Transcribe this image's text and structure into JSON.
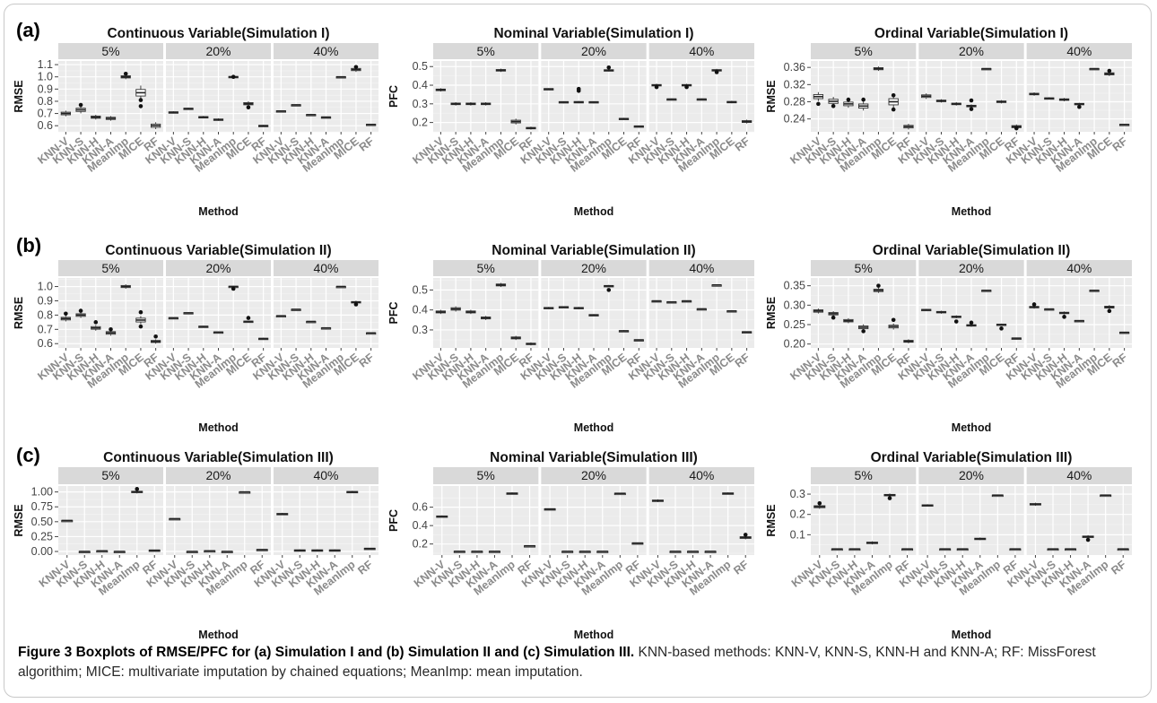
{
  "figure": {
    "caption_lead": "Figure 3 Boxplots of RMSE/PFC for (a) Simulation I and (b) Simulation II and (c) Simulation III.",
    "caption_body": " KNN-based methods: KNN-V, KNN-S, KNN-H and KNN-A; RF: MissForest algorithim; MICE: multivariate imputation by chained equations; MeanImp: mean imputation.",
    "row_labels": [
      "(a)",
      "(b)",
      "(c)"
    ]
  },
  "chart_data": [
    {
      "type": "boxplot",
      "row": 0,
      "col": 0,
      "title": "Continuous Variable(Simulation I)",
      "xlabel": "Method",
      "ylabel": "RMSE",
      "yticks": [
        "0.6",
        "0.7",
        "0.8",
        "0.9",
        "1.0",
        "1.1"
      ],
      "ylim": [
        0.55,
        1.13
      ],
      "facets": [
        "5%",
        "20%",
        "40%"
      ],
      "categories": [
        "KNN-V",
        "KNN-S",
        "KNN-H",
        "KNN-A",
        "MeanImp",
        "MICE",
        "RF"
      ],
      "median": [
        [
          0.7,
          0.73,
          0.67,
          0.66,
          1.0,
          0.87,
          0.6
        ],
        [
          0.71,
          0.74,
          0.67,
          0.65,
          1.0,
          0.78,
          0.6
        ],
        [
          0.72,
          0.77,
          0.69,
          0.67,
          1.0,
          1.06,
          0.61
        ]
      ],
      "spread": [
        [
          0.018,
          0.022,
          0.015,
          0.015,
          0.015,
          0.045,
          0.022
        ],
        [
          0.006,
          0.006,
          0.008,
          0.008,
          0.006,
          0.015,
          0.005
        ],
        [
          0.004,
          0.004,
          0.004,
          0.004,
          0.003,
          0.015,
          0.004
        ]
      ],
      "outliers": [
        [
          [
            1,
            0.77
          ],
          [
            4,
            1.025
          ],
          [
            5,
            0.81
          ],
          [
            5,
            0.76
          ]
        ],
        [
          [
            4,
            1.0
          ],
          [
            5,
            0.75
          ]
        ],
        [
          [
            5,
            1.08
          ]
        ]
      ]
    },
    {
      "type": "boxplot",
      "row": 0,
      "col": 1,
      "title": "Nominal Variable(Simulation I)",
      "xlabel": "Method",
      "ylabel": "PFC",
      "yticks": [
        "0.2",
        "0.3",
        "0.4",
        "0.5"
      ],
      "ylim": [
        0.15,
        0.53
      ],
      "facets": [
        "5%",
        "20%",
        "40%"
      ],
      "categories": [
        "KNN-V",
        "KNN-S",
        "KNN-H",
        "KNN-A",
        "MeanImp",
        "MICE",
        "RF"
      ],
      "median": [
        [
          0.375,
          0.3,
          0.3,
          0.3,
          0.48,
          0.205,
          0.17
        ],
        [
          0.38,
          0.31,
          0.31,
          0.31,
          0.48,
          0.22,
          0.18
        ],
        [
          0.4,
          0.325,
          0.4,
          0.325,
          0.48,
          0.31,
          0.205
        ]
      ],
      "spread": [
        [
          0.007,
          0.007,
          0.007,
          0.007,
          0.007,
          0.012,
          0.006
        ],
        [
          0.003,
          0.003,
          0.004,
          0.003,
          0.005,
          0.004,
          0.003
        ],
        [
          0.006,
          0.003,
          0.006,
          0.003,
          0.006,
          0.005,
          0.008
        ]
      ],
      "outliers": [
        [],
        [
          [
            2,
            0.38
          ],
          [
            2,
            0.37
          ],
          [
            4,
            0.495
          ]
        ],
        [
          [
            0,
            0.39
          ],
          [
            2,
            0.39
          ],
          [
            4,
            0.47
          ]
        ]
      ]
    },
    {
      "type": "boxplot",
      "row": 0,
      "col": 2,
      "title": "Ordinal Variable(Simulation I)",
      "xlabel": "Method",
      "ylabel": "RMSE",
      "yticks": [
        "0.24",
        "0.28",
        "0.32",
        "0.36"
      ],
      "ylim": [
        0.21,
        0.375
      ],
      "facets": [
        "5%",
        "20%",
        "40%"
      ],
      "categories": [
        "KNN-V",
        "KNN-S",
        "KNN-H",
        "KNN-A",
        "MeanImp",
        "MICE",
        "RF"
      ],
      "median": [
        [
          0.292,
          0.281,
          0.275,
          0.27,
          0.357,
          0.28,
          0.222
        ],
        [
          0.293,
          0.282,
          0.275,
          0.27,
          0.357,
          0.28,
          0.222
        ],
        [
          0.298,
          0.288,
          0.285,
          0.275,
          0.357,
          0.345,
          0.227
        ]
      ],
      "spread": [
        [
          0.008,
          0.008,
          0.007,
          0.008,
          0.004,
          0.012,
          0.005
        ],
        [
          0.005,
          0.003,
          0.003,
          0.003,
          0.001,
          0.003,
          0.004
        ],
        [
          0.003,
          0.002,
          0.003,
          0.002,
          0.001,
          0.004,
          0.001
        ]
      ],
      "outliers": [
        [
          [
            0,
            0.275
          ],
          [
            1,
            0.27
          ],
          [
            2,
            0.285
          ],
          [
            3,
            0.285
          ],
          [
            5,
            0.295
          ],
          [
            5,
            0.262
          ]
        ],
        [
          [
            3,
            0.263
          ],
          [
            3,
            0.283
          ],
          [
            6,
            0.218
          ]
        ],
        [
          [
            3,
            0.268
          ],
          [
            5,
            0.352
          ]
        ]
      ]
    },
    {
      "type": "boxplot",
      "row": 1,
      "col": 0,
      "title": "Continuous Variable(Simulation II)",
      "xlabel": "Method",
      "ylabel": "RMSE",
      "yticks": [
        "0.6",
        "0.7",
        "0.8",
        "0.9",
        "1.0"
      ],
      "ylim": [
        0.57,
        1.06
      ],
      "facets": [
        "5%",
        "20%",
        "40%"
      ],
      "categories": [
        "KNN-V",
        "KNN-S",
        "KNN-H",
        "KNN-A",
        "MeanImp",
        "MICE",
        "RF"
      ],
      "median": [
        [
          0.775,
          0.8,
          0.71,
          0.675,
          1.0,
          0.765,
          0.615
        ],
        [
          0.78,
          0.815,
          0.72,
          0.68,
          1.0,
          0.755,
          0.635
        ],
        [
          0.795,
          0.84,
          0.755,
          0.71,
          1.0,
          0.89,
          0.675
        ]
      ],
      "spread": [
        [
          0.015,
          0.015,
          0.015,
          0.015,
          0.012,
          0.022,
          0.012
        ],
        [
          0.004,
          0.004,
          0.004,
          0.004,
          0.004,
          0.005,
          0.005
        ],
        [
          0.002,
          0.002,
          0.002,
          0.002,
          0.002,
          0.008,
          0.002
        ]
      ],
      "outliers": [
        [
          [
            0,
            0.81
          ],
          [
            1,
            0.83
          ],
          [
            2,
            0.75
          ],
          [
            3,
            0.7
          ],
          [
            5,
            0.82
          ],
          [
            5,
            0.72
          ],
          [
            6,
            0.65
          ]
        ],
        [
          [
            4,
            0.985
          ],
          [
            5,
            0.78
          ]
        ],
        [
          [
            5,
            0.875
          ]
        ]
      ]
    },
    {
      "type": "boxplot",
      "row": 1,
      "col": 1,
      "title": "Nominal Variable(Simulation II)",
      "xlabel": "Method",
      "ylabel": "PFC",
      "yticks": [
        "0.3",
        "0.4",
        "0.5"
      ],
      "ylim": [
        0.21,
        0.56
      ],
      "facets": [
        "5%",
        "20%",
        "40%"
      ],
      "categories": [
        "KNN-V",
        "KNN-S",
        "KNN-H",
        "KNN-A",
        "MeanImp",
        "MICE",
        "RF"
      ],
      "median": [
        [
          0.39,
          0.405,
          0.39,
          0.36,
          0.525,
          0.26,
          0.23
        ],
        [
          0.41,
          0.415,
          0.41,
          0.375,
          0.52,
          0.295,
          0.25
        ],
        [
          0.445,
          0.44,
          0.445,
          0.405,
          0.525,
          0.395,
          0.29
        ]
      ],
      "spread": [
        [
          0.008,
          0.01,
          0.008,
          0.008,
          0.008,
          0.008,
          0.006
        ],
        [
          0.004,
          0.003,
          0.004,
          0.003,
          0.004,
          0.003,
          0.002
        ],
        [
          0.002,
          0.002,
          0.002,
          0.002,
          0.001,
          0.002,
          0.002
        ]
      ],
      "outliers": [
        [],
        [
          [
            4,
            0.5
          ]
        ],
        []
      ]
    },
    {
      "type": "boxplot",
      "row": 1,
      "col": 2,
      "title": "Ordinal Variable(Simulation II)",
      "xlabel": "Method",
      "ylabel": "RMSE",
      "yticks": [
        "0.20",
        "0.25",
        "0.30",
        "0.35"
      ],
      "ylim": [
        0.19,
        0.37
      ],
      "facets": [
        "5%",
        "20%",
        "40%"
      ],
      "categories": [
        "KNN-V",
        "KNN-S",
        "KNN-H",
        "KNN-A",
        "MeanImp",
        "MICE",
        "RF"
      ],
      "median": [
        [
          0.285,
          0.278,
          0.26,
          0.243,
          0.338,
          0.245,
          0.207
        ],
        [
          0.288,
          0.282,
          0.27,
          0.248,
          0.338,
          0.25,
          0.215
        ],
        [
          0.295,
          0.29,
          0.28,
          0.26,
          0.338,
          0.295,
          0.23
        ]
      ],
      "spread": [
        [
          0.005,
          0.005,
          0.005,
          0.006,
          0.005,
          0.006,
          0.004
        ],
        [
          0.002,
          0.003,
          0.003,
          0.003,
          0.001,
          0.002,
          0.001
        ],
        [
          0.003,
          0.001,
          0.003,
          0.001,
          0.001,
          0.004,
          0.001
        ]
      ],
      "outliers": [
        [
          [
            1,
            0.268
          ],
          [
            3,
            0.233
          ],
          [
            4,
            0.35
          ],
          [
            5,
            0.262
          ]
        ],
        [
          [
            2,
            0.258
          ],
          [
            3,
            0.255
          ],
          [
            5,
            0.24
          ]
        ],
        [
          [
            0,
            0.302
          ],
          [
            2,
            0.27
          ],
          [
            5,
            0.285
          ]
        ]
      ]
    },
    {
      "type": "boxplot",
      "row": 2,
      "col": 0,
      "title": "Continuous Variable(Simulation III)",
      "xlabel": "Method",
      "ylabel": "RMSE",
      "yticks": [
        "0.00",
        "0.25",
        "0.50",
        "0.75",
        "1.00"
      ],
      "ylim": [
        -0.06,
        1.1
      ],
      "facets": [
        "5%",
        "20%",
        "40%"
      ],
      "categories": [
        "KNN-V",
        "KNN-S",
        "KNN-H",
        "KNN-A",
        "MeanImp",
        "RF"
      ],
      "median": [
        [
          0.52,
          0.0,
          0.01,
          0.0,
          1.0,
          0.02
        ],
        [
          0.55,
          0.0,
          0.01,
          0.0,
          1.0,
          0.03
        ],
        [
          0.63,
          0.02,
          0.02,
          0.02,
          1.0,
          0.05
        ]
      ],
      "spread": [
        [
          0.005,
          0.003,
          0.005,
          0.003,
          0.02,
          0.008
        ],
        [
          0.005,
          0.003,
          0.005,
          0.003,
          0.003,
          0.008
        ],
        [
          0.015,
          0.012,
          0.012,
          0.012,
          0.015,
          0.008
        ]
      ],
      "outliers": [
        [
          [
            4,
            1.05
          ]
        ],
        [],
        []
      ]
    },
    {
      "type": "boxplot",
      "row": 2,
      "col": 1,
      "title": "Nominal Variable(Simulation III)",
      "xlabel": "Method",
      "ylabel": "PFC",
      "yticks": [
        "0.2",
        "0.4",
        "0.6"
      ],
      "ylim": [
        0.08,
        0.83
      ],
      "facets": [
        "5%",
        "20%",
        "40%"
      ],
      "categories": [
        "KNN-V",
        "KNN-S",
        "KNN-H",
        "KNN-A",
        "MeanImp",
        "RF"
      ],
      "median": [
        [
          0.5,
          0.12,
          0.12,
          0.12,
          0.75,
          0.18
        ],
        [
          0.58,
          0.12,
          0.12,
          0.12,
          0.75,
          0.21
        ],
        [
          0.67,
          0.12,
          0.12,
          0.12,
          0.75,
          0.27
        ]
      ],
      "spread": [
        [
          0.008,
          0.003,
          0.003,
          0.003,
          0.008,
          0.003
        ],
        [
          0.005,
          0.002,
          0.002,
          0.002,
          0.003,
          0.004
        ],
        [
          0.012,
          0.002,
          0.002,
          0.002,
          0.008,
          0.015
        ]
      ],
      "outliers": [
        [],
        [],
        [
          [
            5,
            0.3
          ]
        ]
      ]
    },
    {
      "type": "boxplot",
      "row": 2,
      "col": 2,
      "title": "Ordinal Variable(Simulation III)",
      "xlabel": "Method",
      "ylabel": "RMSE",
      "yticks": [
        "0.1",
        "0.2",
        "0.3"
      ],
      "ylim": [
        0.0,
        0.34
      ],
      "facets": [
        "5%",
        "20%",
        "40%"
      ],
      "categories": [
        "KNN-V",
        "KNN-S",
        "KNN-H",
        "KNN-A",
        "MeanImp",
        "RF"
      ],
      "median": [
        [
          0.238,
          0.03,
          0.03,
          0.06,
          0.295,
          0.03
        ],
        [
          0.245,
          0.03,
          0.03,
          0.08,
          0.295,
          0.03
        ],
        [
          0.25,
          0.03,
          0.03,
          0.09,
          0.295,
          0.03
        ]
      ],
      "spread": [
        [
          0.008,
          0.001,
          0.001,
          0.006,
          0.006,
          0.001
        ],
        [
          0.004,
          0.001,
          0.001,
          0.005,
          0.001,
          0.001
        ],
        [
          0.006,
          0.001,
          0.001,
          0.006,
          0.001,
          0.001
        ]
      ],
      "outliers": [
        [
          [
            0,
            0.255
          ],
          [
            4,
            0.28
          ]
        ],
        [],
        [
          [
            3,
            0.075
          ]
        ]
      ]
    }
  ]
}
